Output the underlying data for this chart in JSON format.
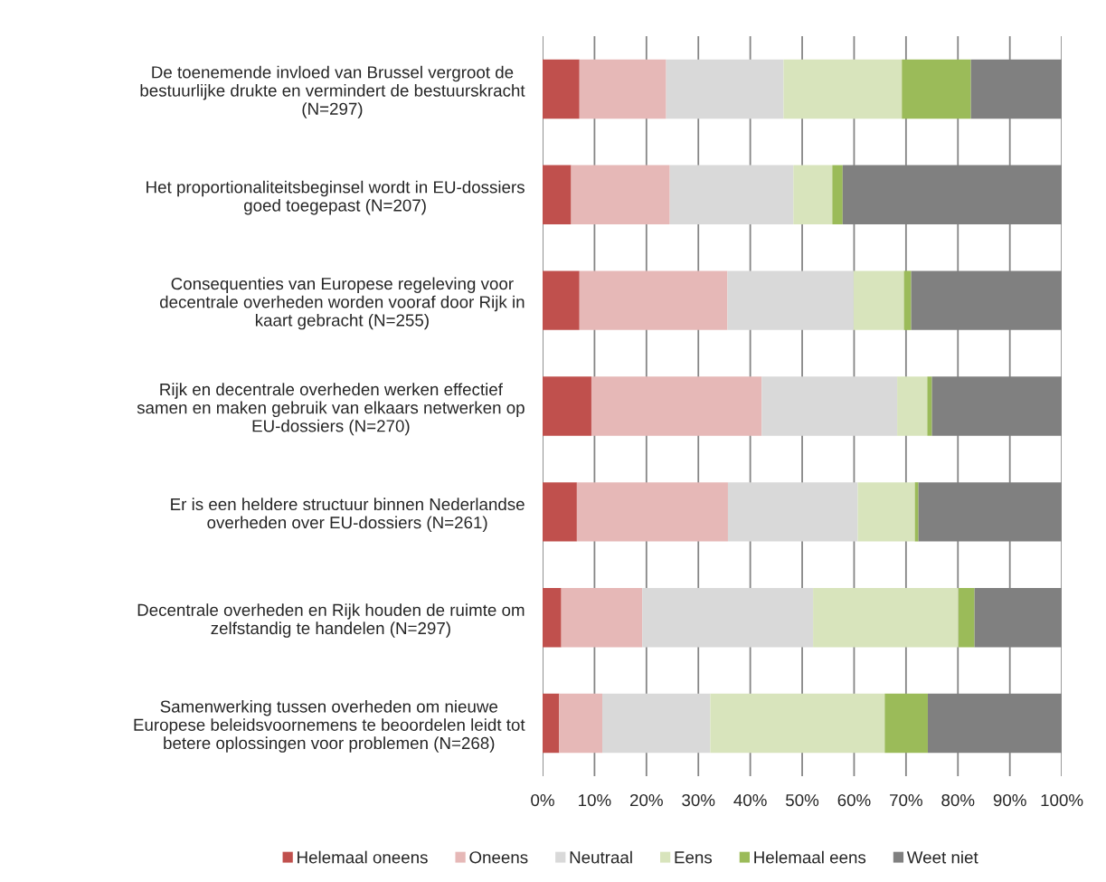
{
  "chart_data": {
    "type": "bar",
    "orientation": "horizontal",
    "stacked": true,
    "categories": [
      "De toenemende invloed van Brussel vergroot de\nbestuurlijke drukte en vermindert de bestuurskracht\n(N=297)",
      "Het proportionaliteitsbeginsel wordt in EU-dossiers\ngoed toegepast (N=207)",
      "Consequenties van Europese regeleving voor\ndecentrale overheden worden vooraf door Rijk in\nkaart gebracht (N=255)",
      "Rijk en decentrale overheden werken effectief\nsamen en maken gebruik van elkaars netwerken op\nEU-dossiers (N=270)",
      "Er is een heldere structuur binnen Nederlandse\noverheden over EU-dossiers (N=261)",
      "Decentrale overheden en Rijk houden de ruimte om\nzelfstandig te handelen (N=297)",
      "Samenwerking tussen overheden om nieuwe\nEuropese beleidsvoornemens te beoordelen leidt tot\nbetere oplossingen voor problemen (N=268)"
    ],
    "series": [
      {
        "name": "Helemaal oneens",
        "color": "#c0504d",
        "values": [
          7.1,
          5.5,
          7.1,
          9.4,
          6.6,
          3.6,
          3.2
        ]
      },
      {
        "name": "Oneens",
        "color": "#e6b8b7",
        "values": [
          16.7,
          19.0,
          28.5,
          32.8,
          29.1,
          15.6,
          8.3
        ]
      },
      {
        "name": "Neutraal",
        "color": "#d9d9d9",
        "values": [
          22.6,
          23.8,
          24.3,
          26.1,
          25.0,
          32.9,
          20.8
        ]
      },
      {
        "name": "Eens",
        "color": "#d8e4bc",
        "values": [
          22.8,
          7.5,
          9.7,
          5.8,
          11.0,
          28.0,
          33.6
        ]
      },
      {
        "name": "Helemaal eens",
        "color": "#9bbb59",
        "values": [
          13.3,
          2.0,
          1.4,
          0.9,
          0.7,
          3.1,
          8.3
        ]
      },
      {
        "name": "Weet niet",
        "color": "#808080",
        "values": [
          17.5,
          42.2,
          29.0,
          25.0,
          27.6,
          16.8,
          25.8
        ]
      }
    ],
    "xlim": [
      0,
      100
    ],
    "xticks": [
      {
        "value": 0,
        "label": "0%"
      },
      {
        "value": 10,
        "label": "10%"
      },
      {
        "value": 20,
        "label": "20%"
      },
      {
        "value": 30,
        "label": "30%"
      },
      {
        "value": 40,
        "label": "40%"
      },
      {
        "value": 50,
        "label": "50%"
      },
      {
        "value": 60,
        "label": "60%"
      },
      {
        "value": 70,
        "label": "70%"
      },
      {
        "value": 80,
        "label": "80%"
      },
      {
        "value": 90,
        "label": "90%"
      },
      {
        "value": 100,
        "label": "100%"
      }
    ],
    "grid": "x",
    "legend": "bottom"
  }
}
